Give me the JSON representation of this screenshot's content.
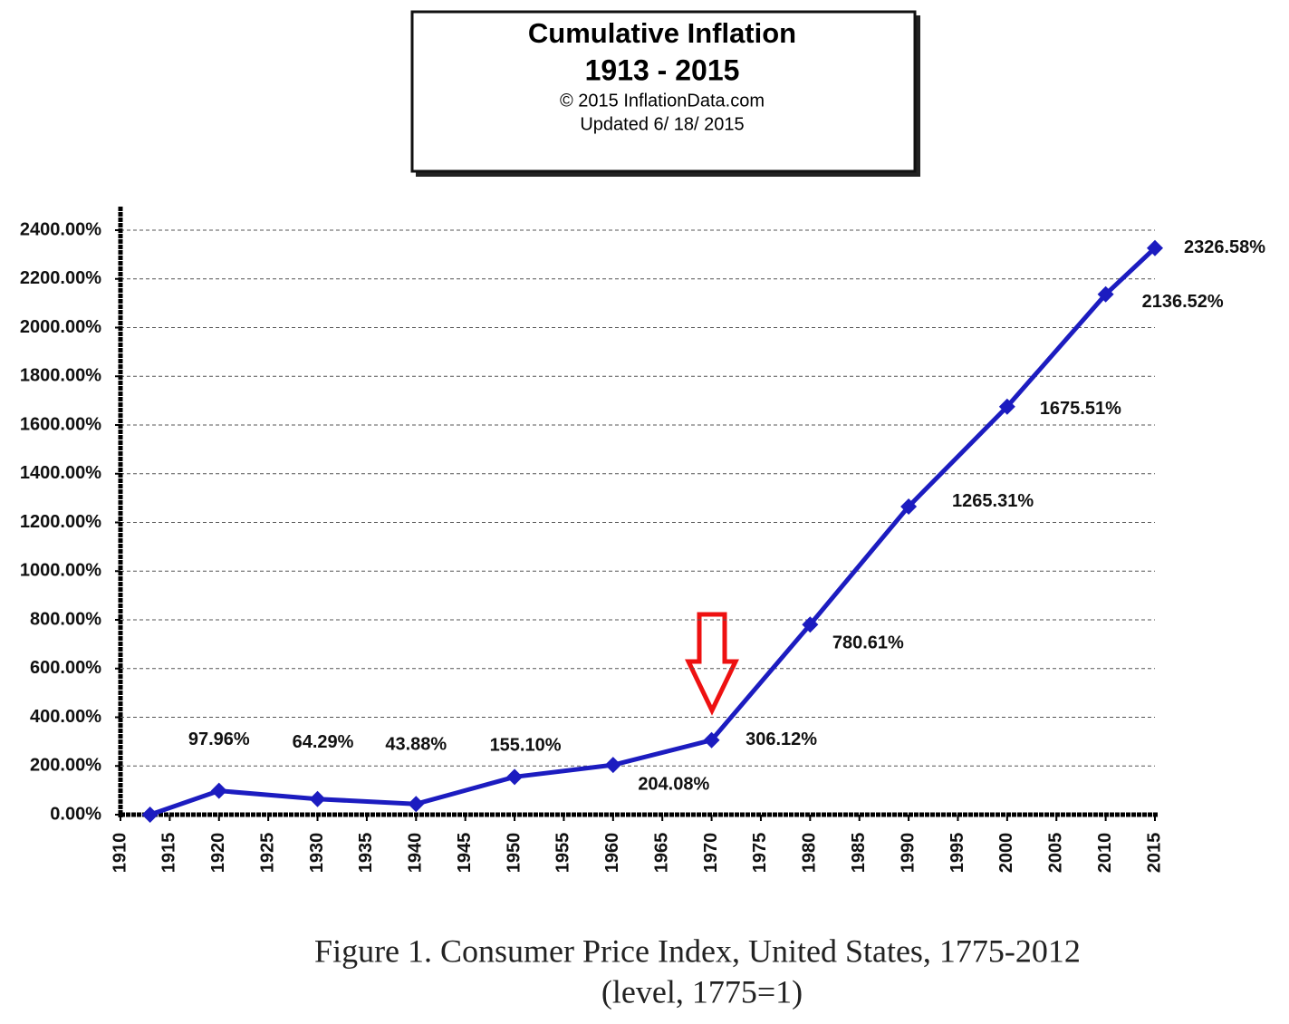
{
  "chart_data": {
    "type": "line",
    "title": "Cumulative Inflation",
    "subtitle": "1913 - 2015",
    "notes": [
      "© 2015 InflationData.com",
      "Updated  6/ 18/ 2015"
    ],
    "caption": [
      "Figure 1. Consumer Price Index, United States, 1775-2012",
      "(level, 1775=1)"
    ],
    "x": [
      1913,
      1920,
      1930,
      1940,
      1950,
      1960,
      1970,
      1980,
      1990,
      2000,
      2010,
      2015
    ],
    "series": [
      {
        "color": "#1c1cc0",
        "values": [
          0,
          97.96,
          64.29,
          43.88,
          155.1,
          204.08,
          306.12,
          780.61,
          1265.31,
          1675.51,
          2136.52,
          2326.58
        ],
        "value_labels": [
          null,
          "97.96%",
          "64.29%",
          "43.88%",
          "155.10%",
          "204.08%",
          "306.12%",
          "780.61%",
          "1265.31%",
          "1675.51%",
          "2136.52%",
          "2326.58%"
        ]
      }
    ],
    "xlim": [
      1910,
      2015
    ],
    "xticks": [
      1910,
      1915,
      1920,
      1925,
      1930,
      1935,
      1940,
      1945,
      1950,
      1955,
      1960,
      1965,
      1970,
      1975,
      1980,
      1985,
      1990,
      1995,
      2000,
      2005,
      2010,
      2015
    ],
    "ylim": [
      0,
      2400
    ],
    "yticks": [
      {
        "value": 0,
        "label": "0.00%"
      },
      {
        "value": 200,
        "label": "200.00%"
      },
      {
        "value": 400,
        "label": "400.00%"
      },
      {
        "value": 600,
        "label": "600.00%"
      },
      {
        "value": 800,
        "label": "800.00%"
      },
      {
        "value": 1000,
        "label": "1000.00%"
      },
      {
        "value": 1200,
        "label": "1200.00%"
      },
      {
        "value": 1400,
        "label": "1400.00%"
      },
      {
        "value": 1600,
        "label": "1600.00%"
      },
      {
        "value": 1800,
        "label": "1800.00%"
      },
      {
        "value": 2000,
        "label": "2000.00%"
      },
      {
        "value": 2200,
        "label": "2200.00%"
      },
      {
        "value": 2400,
        "label": "2400.00%"
      }
    ],
    "grid": true
  }
}
